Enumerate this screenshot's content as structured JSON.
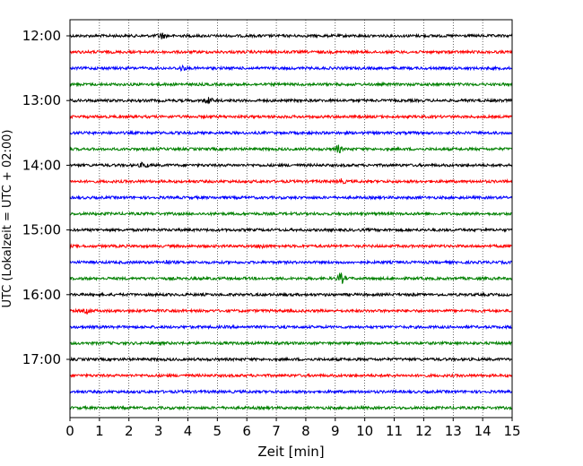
{
  "chart_data": {
    "type": "line",
    "title": "",
    "xlabel": "Zeit  [min]",
    "ylabel": "UTC (Lokalzeit = UTC + 02:00)",
    "xlim": [
      0,
      15
    ],
    "x_ticks": [
      "0",
      "1",
      "2",
      "3",
      "4",
      "5",
      "6",
      "7",
      "8",
      "9",
      "10",
      "11",
      "12",
      "13",
      "14",
      "15"
    ],
    "y_ticks": [
      "12:00",
      "13:00",
      "14:00",
      "15:00",
      "16:00",
      "17:00"
    ],
    "grid": "vertical dotted",
    "trace_interval": "15 min",
    "colors": [
      "#000000",
      "#ff0000",
      "#0000ff",
      "#008000"
    ],
    "traces": [
      {
        "start": "12:00",
        "color": "#000000",
        "events": [
          [
            3.1,
            3.0
          ]
        ]
      },
      {
        "start": "12:15",
        "color": "#ff0000",
        "events": []
      },
      {
        "start": "12:30",
        "color": "#0000ff",
        "events": [
          [
            3.8,
            2.2
          ]
        ]
      },
      {
        "start": "12:45",
        "color": "#008000",
        "events": []
      },
      {
        "start": "13:00",
        "color": "#000000",
        "events": [
          [
            4.7,
            3.0
          ]
        ]
      },
      {
        "start": "13:15",
        "color": "#ff0000",
        "events": []
      },
      {
        "start": "13:30",
        "color": "#0000ff",
        "events": []
      },
      {
        "start": "13:45",
        "color": "#008000",
        "events": [
          [
            9.1,
            3.5
          ]
        ]
      },
      {
        "start": "14:00",
        "color": "#000000",
        "events": [
          [
            2.5,
            2.5
          ]
        ]
      },
      {
        "start": "14:15",
        "color": "#ff0000",
        "events": [
          [
            9.2,
            2.0
          ]
        ]
      },
      {
        "start": "14:30",
        "color": "#0000ff",
        "events": []
      },
      {
        "start": "14:45",
        "color": "#008000",
        "events": []
      },
      {
        "start": "15:00",
        "color": "#000000",
        "events": []
      },
      {
        "start": "15:15",
        "color": "#ff0000",
        "events": [
          [
            6.5,
            1.8
          ]
        ]
      },
      {
        "start": "15:30",
        "color": "#0000ff",
        "events": [
          [
            3.3,
            1.5
          ]
        ]
      },
      {
        "start": "15:45",
        "color": "#008000",
        "events": [
          [
            9.2,
            5.0
          ]
        ]
      },
      {
        "start": "16:00",
        "color": "#000000",
        "events": []
      },
      {
        "start": "16:15",
        "color": "#ff0000",
        "events": [
          [
            0.6,
            1.8
          ]
        ]
      },
      {
        "start": "16:30",
        "color": "#0000ff",
        "events": []
      },
      {
        "start": "16:45",
        "color": "#008000",
        "events": []
      },
      {
        "start": "17:00",
        "color": "#000000",
        "events": []
      },
      {
        "start": "17:15",
        "color": "#ff0000",
        "events": []
      },
      {
        "start": "17:30",
        "color": "#0000ff",
        "events": []
      },
      {
        "start": "17:45",
        "color": "#008000",
        "events": []
      }
    ]
  }
}
